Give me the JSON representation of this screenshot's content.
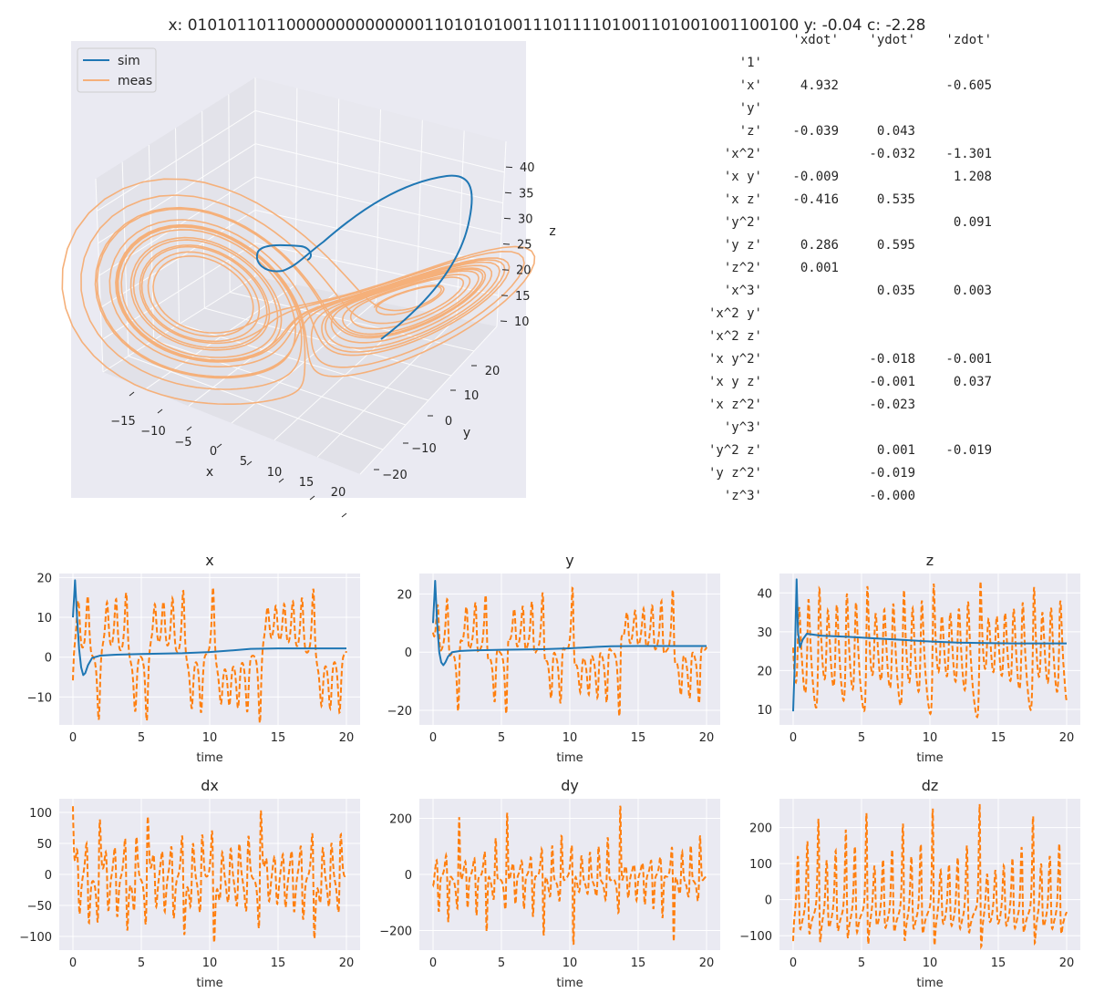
{
  "suptitle": "x: 0101011011000000000000001101010100111011110100110100100110010​0  y: -0.04  c: -2.28",
  "colors": {
    "sim": "#1f77b4",
    "meas": "#ff7f0e",
    "meas_3d": "#f5b07a",
    "panel_bg": "#eaeaf2",
    "grid": "#ffffff"
  },
  "coef_table": {
    "headers": [
      "'xdot'",
      "'ydot'",
      "'zdot'"
    ],
    "rows": [
      {
        "term": "'1'",
        "xdot": "",
        "ydot": "",
        "zdot": ""
      },
      {
        "term": "'x'",
        "xdot": "4.932",
        "ydot": "",
        "zdot": "-0.605"
      },
      {
        "term": "'y'",
        "xdot": "",
        "ydot": "",
        "zdot": ""
      },
      {
        "term": "'z'",
        "xdot": "-0.039",
        "ydot": "0.043",
        "zdot": ""
      },
      {
        "term": "'x^2'",
        "xdot": "",
        "ydot": "-0.032",
        "zdot": "-1.301"
      },
      {
        "term": "'x y'",
        "xdot": "-0.009",
        "ydot": "",
        "zdot": "1.208"
      },
      {
        "term": "'x z'",
        "xdot": "-0.416",
        "ydot": "0.535",
        "zdot": ""
      },
      {
        "term": "'y^2'",
        "xdot": "",
        "ydot": "",
        "zdot": "0.091"
      },
      {
        "term": "'y z'",
        "xdot": "0.286",
        "ydot": "0.595",
        "zdot": ""
      },
      {
        "term": "'z^2'",
        "xdot": "0.001",
        "ydot": "",
        "zdot": ""
      },
      {
        "term": "'x^3'",
        "xdot": "",
        "ydot": "0.035",
        "zdot": "0.003"
      },
      {
        "term": "'x^2 y'",
        "xdot": "",
        "ydot": "",
        "zdot": ""
      },
      {
        "term": "'x^2 z'",
        "xdot": "",
        "ydot": "",
        "zdot": ""
      },
      {
        "term": "'x y^2'",
        "xdot": "",
        "ydot": "-0.018",
        "zdot": "-0.001"
      },
      {
        "term": "'x y z'",
        "xdot": "",
        "ydot": "-0.001",
        "zdot": "0.037"
      },
      {
        "term": "'x z^2'",
        "xdot": "",
        "ydot": "-0.023",
        "zdot": ""
      },
      {
        "term": "'y^3'",
        "xdot": "",
        "ydot": "",
        "zdot": ""
      },
      {
        "term": "'y^2 z'",
        "xdot": "",
        "ydot": "0.001",
        "zdot": "-0.019"
      },
      {
        "term": "'y z^2'",
        "xdot": "",
        "ydot": "-0.019",
        "zdot": ""
      },
      {
        "term": "'z^3'",
        "xdot": "",
        "ydot": "-0.000",
        "zdot": ""
      }
    ]
  },
  "chart_data": [
    {
      "type": "line",
      "subtype": "3d-line",
      "legend": [
        "sim",
        "meas"
      ],
      "legend_position": "top-left",
      "xlabel": "x",
      "ylabel": "y",
      "zlabel": "z",
      "xticks": [
        -15,
        -10,
        -5,
        0,
        5,
        10,
        15,
        20
      ],
      "yticks": [
        -20,
        -10,
        0,
        10,
        20
      ],
      "zticks": [
        10,
        15,
        20,
        25,
        30,
        35,
        40
      ],
      "xlim": [
        -18,
        22
      ],
      "ylim": [
        -25,
        28
      ],
      "zlim": [
        5,
        45
      ],
      "series": [
        {
          "name": "sim",
          "description": "transient from (10,10,10) settling to fixed point near (2, 2, 27)"
        },
        {
          "name": "meas",
          "description": "Lorenz attractor, two lobes"
        }
      ]
    },
    {
      "type": "line",
      "title": "x",
      "xlabel": "time",
      "xticks": [
        0,
        5,
        10,
        15,
        20
      ],
      "yticks": [
        -10,
        0,
        10,
        20
      ],
      "xlim": [
        -1,
        21
      ],
      "ylim": [
        -17,
        21
      ],
      "grid": true,
      "series": [
        {
          "name": "sim",
          "style": "solid",
          "t": [
            0,
            0.15,
            0.3,
            0.45,
            0.6,
            0.75,
            0.9,
            1.1,
            1.4,
            2,
            3,
            5,
            8,
            10,
            12,
            13,
            15,
            18,
            20
          ],
          "values": [
            10,
            19.3,
            10,
            2,
            -2.5,
            -4.5,
            -4,
            -2,
            -0.2,
            0.4,
            0.6,
            0.8,
            1.0,
            1.3,
            1.8,
            2.1,
            2.2,
            2.2,
            2.2
          ]
        },
        {
          "name": "meas",
          "style": "dashed",
          "t_range": [
            0,
            20
          ],
          "min": -16.5,
          "max": 17.5
        }
      ]
    },
    {
      "type": "line",
      "title": "y",
      "xlabel": "time",
      "xticks": [
        0,
        5,
        10,
        15,
        20
      ],
      "yticks": [
        -20,
        0,
        20
      ],
      "xlim": [
        -1,
        21
      ],
      "ylim": [
        -25,
        27
      ],
      "grid": true,
      "series": [
        {
          "name": "sim",
          "style": "solid",
          "t": [
            0,
            0.15,
            0.3,
            0.45,
            0.6,
            0.75,
            0.9,
            1.1,
            1.4,
            2,
            3,
            5,
            8,
            10,
            12,
            13,
            15,
            18,
            20
          ],
          "values": [
            10,
            24.5,
            10,
            0,
            -3.5,
            -4.5,
            -3.5,
            -1.5,
            0,
            0.4,
            0.6,
            0.8,
            1.0,
            1.3,
            1.8,
            2.0,
            2.1,
            2.1,
            2.1
          ]
        },
        {
          "name": "meas",
          "style": "dashed",
          "t_range": [
            0,
            20
          ],
          "min": -22,
          "max": 22
        }
      ]
    },
    {
      "type": "line",
      "title": "z",
      "xlabel": "time",
      "xticks": [
        0,
        5,
        10,
        15,
        20
      ],
      "yticks": [
        10,
        20,
        30,
        40
      ],
      "xlim": [
        -1,
        21
      ],
      "ylim": [
        6,
        45
      ],
      "grid": true,
      "series": [
        {
          "name": "sim",
          "style": "solid",
          "t": [
            0,
            0.1,
            0.25,
            0.35,
            0.5,
            0.7,
            1,
            2,
            4,
            6,
            8,
            10,
            12,
            14,
            16,
            18,
            20
          ],
          "values": [
            9.5,
            20,
            43.5,
            30,
            26,
            28,
            29.5,
            29,
            28.7,
            28.3,
            27.9,
            27.5,
            27.2,
            27.1,
            27.0,
            27.0,
            27.0
          ]
        },
        {
          "name": "meas",
          "style": "dashed",
          "t_range": [
            0,
            20
          ],
          "min": 8,
          "max": 43
        }
      ]
    },
    {
      "type": "line",
      "title": "dx",
      "xlabel": "time",
      "xticks": [
        0,
        5,
        10,
        15,
        20
      ],
      "yticks": [
        -100,
        -50,
        0,
        50,
        100
      ],
      "xlim": [
        -1,
        21
      ],
      "ylim": [
        -122,
        122
      ],
      "grid": true,
      "series": [
        {
          "name": "meas",
          "style": "dashed",
          "t_range": [
            0,
            20
          ],
          "min": -110,
          "max": 110
        }
      ]
    },
    {
      "type": "line",
      "title": "dy",
      "xlabel": "time",
      "xticks": [
        0,
        5,
        10,
        15,
        20
      ],
      "yticks": [
        -200,
        0,
        200
      ],
      "xlim": [
        -1,
        21
      ],
      "ylim": [
        -270,
        270
      ],
      "grid": true,
      "series": [
        {
          "name": "meas",
          "style": "dashed",
          "t_range": [
            0,
            20
          ],
          "min": -250,
          "max": 245
        }
      ]
    },
    {
      "type": "line",
      "title": "dz",
      "xlabel": "time",
      "xticks": [
        0,
        5,
        10,
        15,
        20
      ],
      "yticks": [
        -100,
        0,
        100,
        200
      ],
      "xlim": [
        -1,
        21
      ],
      "ylim": [
        -140,
        280
      ],
      "grid": true,
      "series": [
        {
          "name": "meas",
          "style": "dashed",
          "t_range": [
            0,
            20
          ],
          "min": -130,
          "max": 265
        }
      ]
    }
  ]
}
